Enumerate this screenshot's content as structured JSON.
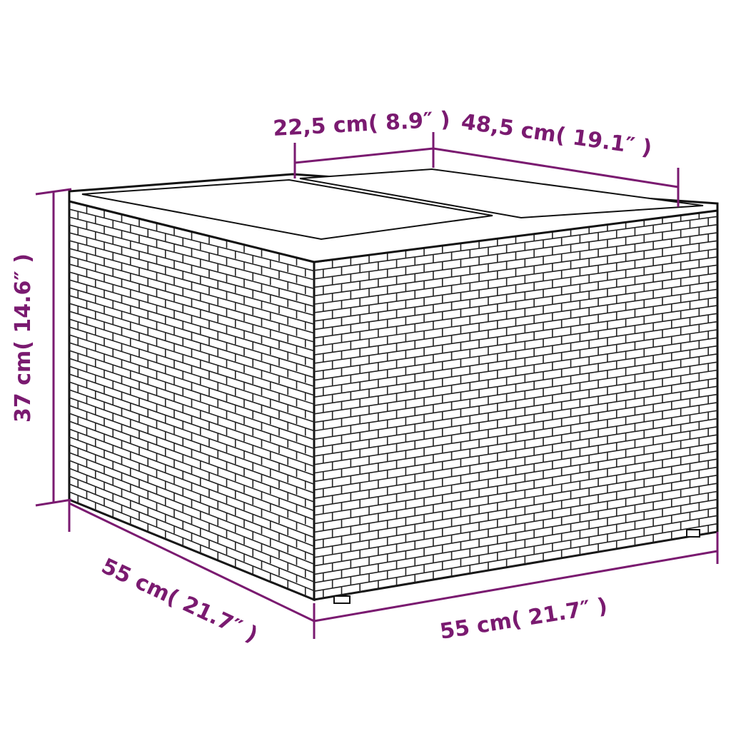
{
  "colors": {
    "dimension": "#7a1a70",
    "outline": "#111111"
  },
  "dimensions": {
    "lid_width": "22,5 cm( 8.9″ )",
    "lid_length": "48,5 cm( 19.1″ )",
    "height": "37 cm( 14.6″ )",
    "depth": "55 cm( 21.7″ )",
    "width": "55 cm( 21.7″ )"
  }
}
